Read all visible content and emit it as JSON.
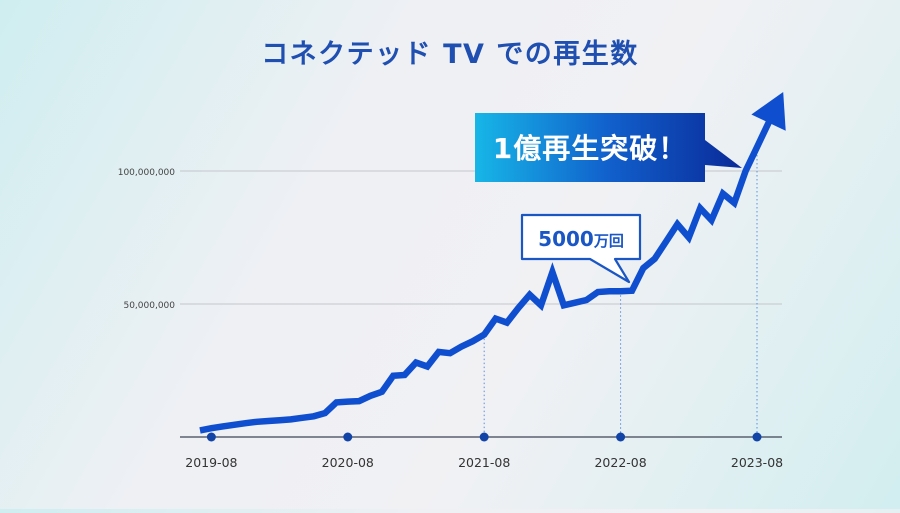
{
  "chart_data": {
    "type": "line",
    "title": "コネクテッド TV での再生数",
    "y_ticks": [
      {
        "value": 50000000,
        "label": "50,000,000"
      },
      {
        "value": 100000000,
        "label": "100,000,000"
      }
    ],
    "ylim": [
      0,
      125000000
    ],
    "grid": true,
    "x_ticks": [
      "2019-08",
      "2020-08",
      "2021-08",
      "2022-08",
      "2023-08"
    ],
    "xlim": [
      "2019-07",
      "2023-11"
    ],
    "series": [
      {
        "x": [
          "2019-07",
          "2019-08",
          "2019-09",
          "2019-10",
          "2019-11",
          "2019-12",
          "2020-01",
          "2020-02",
          "2020-03",
          "2020-04",
          "2020-05",
          "2020-06",
          "2020-07",
          "2020-08",
          "2020-09",
          "2020-10",
          "2020-11",
          "2020-12",
          "2021-01",
          "2021-02",
          "2021-03",
          "2021-04",
          "2021-05",
          "2021-06",
          "2021-07",
          "2021-08",
          "2021-09",
          "2021-10",
          "2021-11",
          "2021-12",
          "2022-01",
          "2022-02",
          "2022-03",
          "2022-04",
          "2022-05",
          "2022-06",
          "2022-07",
          "2022-08",
          "2022-09",
          "2022-10",
          "2022-11",
          "2022-12",
          "2023-01",
          "2023-02",
          "2023-03",
          "2023-04",
          "2023-05",
          "2023-06",
          "2023-07",
          "2023-08",
          "2023-09",
          "2023-10"
        ],
        "values": [
          2500000,
          3300000,
          4000000,
          4600000,
          5200000,
          5700000,
          6000000,
          6300000,
          6600000,
          7200000,
          7800000,
          9000000,
          13000000,
          13300000,
          13500000,
          15500000,
          17000000,
          23000000,
          23300000,
          28000000,
          26500000,
          32000000,
          31500000,
          34000000,
          36000000,
          38500000,
          44500000,
          43000000,
          48500000,
          53500000,
          49500000,
          62000000,
          49500000,
          50500000,
          51500000,
          54500000,
          54800000,
          54800000,
          55000000,
          63500000,
          67000000,
          73500000,
          80000000,
          75000000,
          86000000,
          81500000,
          91500000,
          88000000,
          100000000,
          109000000,
          118000000,
          127000000
        ]
      }
    ],
    "annotations": [
      {
        "text": "1億再生突破！",
        "x": "2023-08",
        "y": 100000000
      },
      {
        "text_num": "5000",
        "text_unit": "万回",
        "x": "2022-08",
        "y": 55000000
      }
    ],
    "colors": {
      "line": "#0f4fcf",
      "marker": "#1244a8",
      "grid": "#c4c6cc",
      "axis": "#5a6070",
      "title": "#1f4fb0",
      "callout_light": "#17b6e7",
      "callout_dark": "#0a2a98"
    }
  }
}
